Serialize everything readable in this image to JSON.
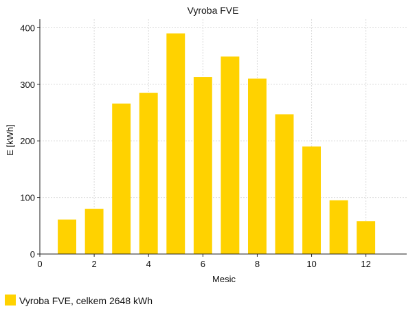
{
  "chart_data": {
    "type": "bar",
    "title": "Vyroba FVE",
    "xlabel": "Mesic",
    "ylabel": "E [kWh]",
    "x": [
      1,
      2,
      3,
      4,
      5,
      6,
      7,
      8,
      9,
      10,
      11,
      12
    ],
    "series": [
      {
        "name": "Vyroba FVE, celkem 2648 kWh",
        "values": [
          61,
          80,
          266,
          285,
          390,
          313,
          349,
          310,
          247,
          190,
          95,
          58
        ],
        "color": "#ffd200"
      }
    ],
    "xlim": [
      0,
      13.5
    ],
    "ylim": [
      0,
      415
    ],
    "xticks": [
      0,
      2,
      4,
      6,
      8,
      10,
      12
    ],
    "yticks": [
      0,
      100,
      200,
      300,
      400
    ],
    "grid": true,
    "legend": "bottom-left"
  }
}
